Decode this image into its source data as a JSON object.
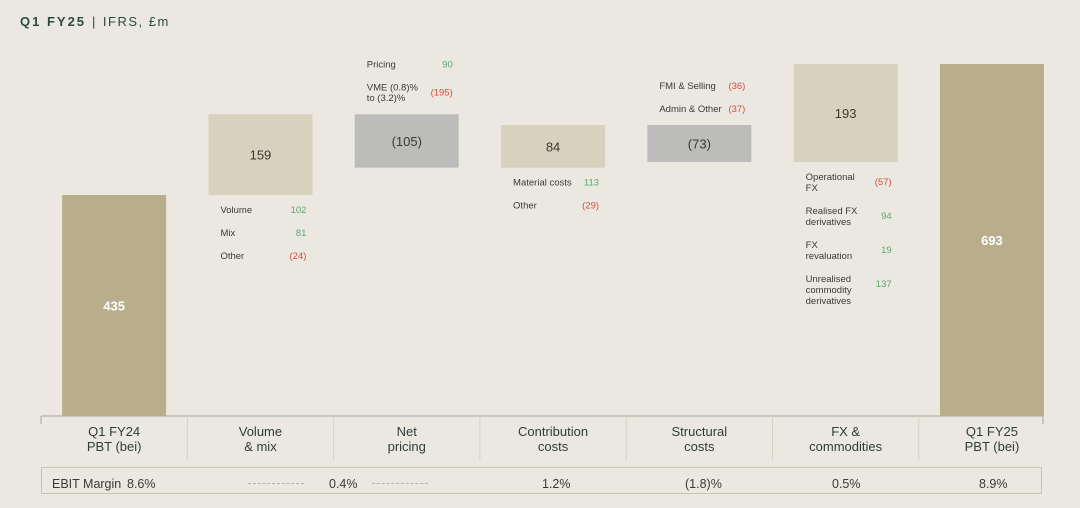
{
  "header": {
    "title_bold": "Q1 FY25",
    "separator": "|",
    "title_rest": "IFRS, £m"
  },
  "colors": {
    "base_bar": "#b8ae8c",
    "increase_bar": "#d6d2bd",
    "decrease_bar": "#bcbcbb",
    "positive": "#58a86b",
    "negative": "#d64c3c",
    "axis": "#a8a496"
  },
  "chart_data": {
    "type": "waterfall",
    "title": "Q1 FY25 | IFRS, £m",
    "categories": [
      "Q1 FY24\nPBT (bei)",
      "Volume\n& mix",
      "Net\npricing",
      "Contribution\ncosts",
      "Structural\ncosts",
      "FX &\ncommodities",
      "Q1 FY25\nPBT (bei)"
    ],
    "steps": [
      {
        "kind": "total",
        "value": 435,
        "label": "435"
      },
      {
        "kind": "delta",
        "value": 159,
        "label": "159"
      },
      {
        "kind": "delta",
        "value": -105,
        "label": "(105)"
      },
      {
        "kind": "delta",
        "value": 84,
        "label": "84"
      },
      {
        "kind": "delta",
        "value": -73,
        "label": "(73)"
      },
      {
        "kind": "delta",
        "value": 193,
        "label": "193"
      },
      {
        "kind": "total",
        "value": 693,
        "label": "693"
      }
    ],
    "breakdowns": [
      [],
      [
        {
          "name": "Volume",
          "value": "102",
          "sign": "pos"
        },
        {
          "name": "Mix",
          "value": "81",
          "sign": "pos"
        },
        {
          "name": "Other",
          "value": "(24)",
          "sign": "neg"
        }
      ],
      [
        {
          "name": "Pricing",
          "value": "90",
          "sign": "pos"
        },
        {
          "name": "VME (0.8)%\nto (3.2)%",
          "value": "(195)",
          "sign": "neg"
        }
      ],
      [
        {
          "name": "Material costs",
          "value": "113",
          "sign": "pos"
        },
        {
          "name": "Other",
          "value": "(29)",
          "sign": "neg"
        }
      ],
      [
        {
          "name": "FMI & Selling",
          "value": "(36)",
          "sign": "neg"
        },
        {
          "name": "Admin & Other",
          "value": "(37)",
          "sign": "neg"
        }
      ],
      [
        {
          "name": "Operational\nFX",
          "value": "(57)",
          "sign": "neg"
        },
        {
          "name": "Realised FX\nderivatives",
          "value": "94",
          "sign": "pos"
        },
        {
          "name": "FX\nrevaluation",
          "value": "19",
          "sign": "pos"
        },
        {
          "name": "Unrealised\ncommodity\nderivatives",
          "value": "137",
          "sign": "pos"
        }
      ],
      []
    ],
    "ylim": [
      0,
      693
    ]
  },
  "ebit_margin": {
    "label": "EBIT Margin",
    "start": "8.6%",
    "changes": [
      "0.4%",
      "1.2%",
      "(1.8)%",
      "0.5%"
    ],
    "end": "8.9%"
  }
}
